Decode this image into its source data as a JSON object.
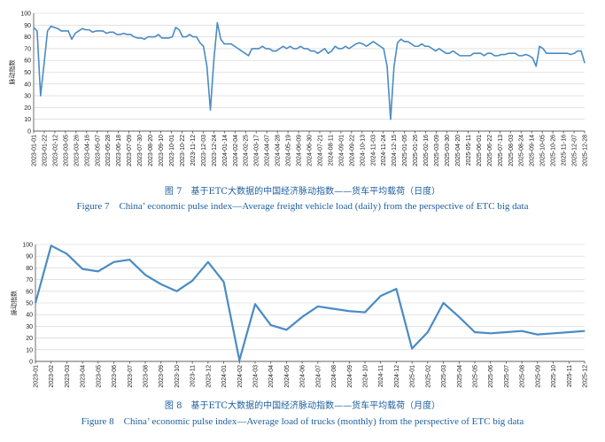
{
  "colors": {
    "line": "#4a8bc4",
    "caption": "#1f5fa0",
    "grid": "#d0d0d0"
  },
  "figures": [
    {
      "caption_cn": "图 7　基于ETC大数据的中国经济脉动指数——货车平均载荷（日度）",
      "caption_en": "Figure 7　China’ economic pulse index—Average freight vehicle load (daily) from the perspective of ETC big data"
    },
    {
      "caption_cn": "图 8　基于ETC大数据的中国经济脉动指数——货车平均载荷（月度）",
      "caption_en": "Figure 8　China’ economic pulse index—Average load of trucks (monthly) from the perspective of ETC big data"
    }
  ],
  "chart_data": [
    {
      "type": "line",
      "title": "Average freight vehicle load (daily)",
      "ylabel": "脉动指数",
      "ylim": [
        0,
        100
      ],
      "yticks": [
        0,
        10,
        20,
        30,
        40,
        50,
        60,
        70,
        80,
        90,
        100
      ],
      "x_tick_labels": [
        "2023-01-01",
        "2023-01-22",
        "2023-02-12",
        "2023-03-05",
        "2023-03-26",
        "2023-04-16",
        "2023-05-07",
        "2023-05-28",
        "2023-06-18",
        "2023-07-09",
        "2023-07-30",
        "2023-08-20",
        "2023-09-10",
        "2023-10-01",
        "2023-10-22",
        "2023-11-12",
        "2023-12-03",
        "2023-12-24",
        "2024-01-14",
        "2024-02-04",
        "2024-02-25",
        "2024-03-17",
        "2024-04-07",
        "2024-04-28",
        "2024-05-19",
        "2024-06-09",
        "2024-06-30",
        "2024-07-21",
        "2024-08-11",
        "2024-09-01",
        "2024-09-22",
        "2024-10-13",
        "2024-11-03",
        "2024-11-24",
        "2024-12-15",
        "2025-01-05",
        "2025-01-26",
        "2025-02-16",
        "2025-03-09",
        "2025-03-30",
        "2025-04-20",
        "2025-05-11",
        "2025-06-01",
        "2025-06-22",
        "2025-07-13",
        "2025-08-03",
        "2025-08-24",
        "2025-09-14",
        "2025-10-05",
        "2025-10-26",
        "2025-11-16",
        "2025-12-07",
        "2025-12-28"
      ],
      "values_weekly": [
        88,
        85,
        30,
        57,
        85,
        89,
        88,
        87,
        85,
        85,
        85,
        78,
        83,
        85,
        87,
        86,
        86,
        84,
        85,
        85,
        85,
        83,
        84,
        84,
        82,
        82,
        83,
        82,
        82,
        80,
        79,
        79,
        78,
        80,
        80,
        80,
        82,
        79,
        79,
        79,
        80,
        88,
        86,
        80,
        80,
        82,
        80,
        80,
        75,
        72,
        55,
        18,
        60,
        92,
        78,
        74,
        74,
        74,
        72,
        70,
        68,
        66,
        64,
        70,
        70,
        70,
        72,
        70,
        70,
        68,
        68,
        70,
        72,
        70,
        72,
        70,
        70,
        72,
        70,
        70,
        68,
        68,
        66,
        68,
        70,
        66,
        68,
        72,
        70,
        70,
        72,
        70,
        72,
        74,
        75,
        74,
        72,
        74,
        76,
        74,
        72,
        70,
        55,
        10,
        55,
        75,
        78,
        76,
        76,
        74,
        72,
        72,
        74,
        72,
        72,
        70,
        68,
        70,
        68,
        66,
        66,
        68,
        66,
        64,
        64,
        64,
        64,
        66,
        66,
        66,
        64,
        66,
        66,
        64,
        64,
        65,
        65,
        66,
        66,
        66,
        64,
        64,
        65,
        64,
        62,
        55,
        72,
        70,
        66,
        66,
        66,
        66,
        66,
        66,
        66,
        65,
        66,
        68,
        68,
        58
      ]
    },
    {
      "type": "line",
      "title": "Average load of trucks (monthly)",
      "ylabel": "脉动指数",
      "ylim": [
        0,
        100
      ],
      "yticks": [
        0,
        10,
        20,
        30,
        40,
        50,
        60,
        70,
        80,
        90,
        100
      ],
      "categories": [
        "2023-01",
        "2023-02",
        "2023-03",
        "2023-04",
        "2023-05",
        "2023-06",
        "2023-07",
        "2023-08",
        "2023-09",
        "2023-10",
        "2023-11",
        "2023-12",
        "2024-01",
        "2024-02",
        "2024-03",
        "2024-04",
        "2024-05",
        "2024-06",
        "2024-07",
        "2024-08",
        "2024-09",
        "2024-10",
        "2024-11",
        "2024-12",
        "2025-01",
        "2025-02",
        "2025-03",
        "2025-04",
        "2025-05",
        "2025-06",
        "2025-07",
        "2025-08",
        "2025-09",
        "2025-10",
        "2025-11",
        "2025-12"
      ],
      "values": [
        50,
        99,
        92,
        79,
        77,
        85,
        87,
        74,
        66,
        60,
        69,
        85,
        68,
        1,
        49,
        31,
        27,
        38,
        47,
        45,
        43,
        42,
        56,
        62,
        11,
        25,
        50,
        38,
        25,
        24,
        25,
        26,
        23,
        24,
        25,
        26
      ]
    }
  ]
}
